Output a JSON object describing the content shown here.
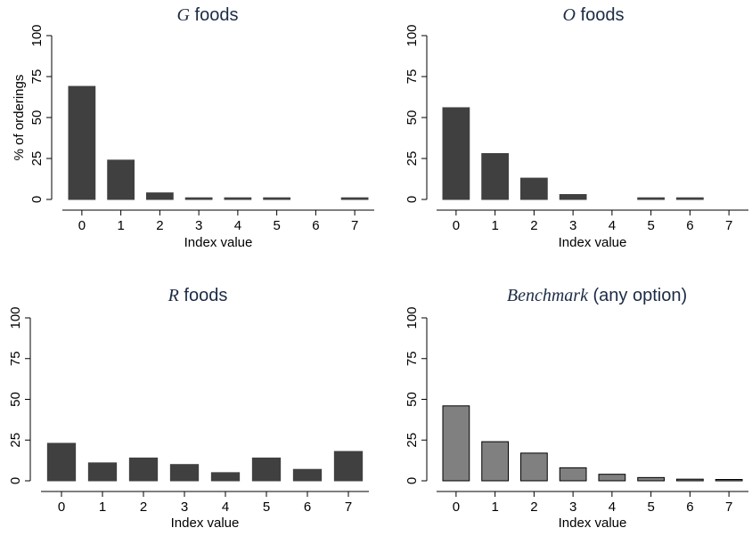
{
  "chart_data": [
    {
      "type": "bar",
      "title_italic": "G",
      "title_rest": "foods",
      "xlabel": "Index value",
      "ylabel": "% of orderings",
      "ylim": [
        0,
        100
      ],
      "yticks": [
        0,
        25,
        50,
        75,
        100
      ],
      "categories": [
        "0",
        "1",
        "2",
        "3",
        "4",
        "5",
        "6",
        "7"
      ],
      "values": [
        69,
        24,
        4,
        1,
        1,
        1,
        0,
        1
      ],
      "bar_color": "#404040",
      "edge_color": "#404040"
    },
    {
      "type": "bar",
      "title_italic": "O",
      "title_rest": "foods",
      "xlabel": "Index value",
      "ylabel": "",
      "ylim": [
        0,
        100
      ],
      "yticks": [
        0,
        25,
        50,
        75,
        100
      ],
      "categories": [
        "0",
        "1",
        "2",
        "3",
        "4",
        "5",
        "6",
        "7"
      ],
      "values": [
        56,
        28,
        13,
        3,
        0,
        1,
        1,
        0
      ],
      "bar_color": "#404040",
      "edge_color": "#404040"
    },
    {
      "type": "bar",
      "title_italic": "R",
      "title_rest": "foods",
      "xlabel": "Index value",
      "ylabel": "",
      "ylim": [
        0,
        100
      ],
      "yticks": [
        0,
        25,
        50,
        75,
        100
      ],
      "categories": [
        "0",
        "1",
        "2",
        "3",
        "4",
        "5",
        "6",
        "7"
      ],
      "values": [
        23,
        11,
        14,
        10,
        5,
        14,
        7,
        18
      ],
      "bar_color": "#404040",
      "edge_color": "#404040"
    },
    {
      "type": "bar",
      "title_italic": "Benchmark",
      "title_rest": "(any option)",
      "xlabel": "Index value",
      "ylabel": "",
      "ylim": [
        0,
        100
      ],
      "yticks": [
        0,
        25,
        50,
        75,
        100
      ],
      "categories": [
        "0",
        "1",
        "2",
        "3",
        "4",
        "5",
        "6",
        "7"
      ],
      "values": [
        46,
        24,
        17,
        8,
        4,
        2,
        1,
        0.5
      ],
      "bar_color": "#808080",
      "edge_color": "#000000"
    }
  ]
}
